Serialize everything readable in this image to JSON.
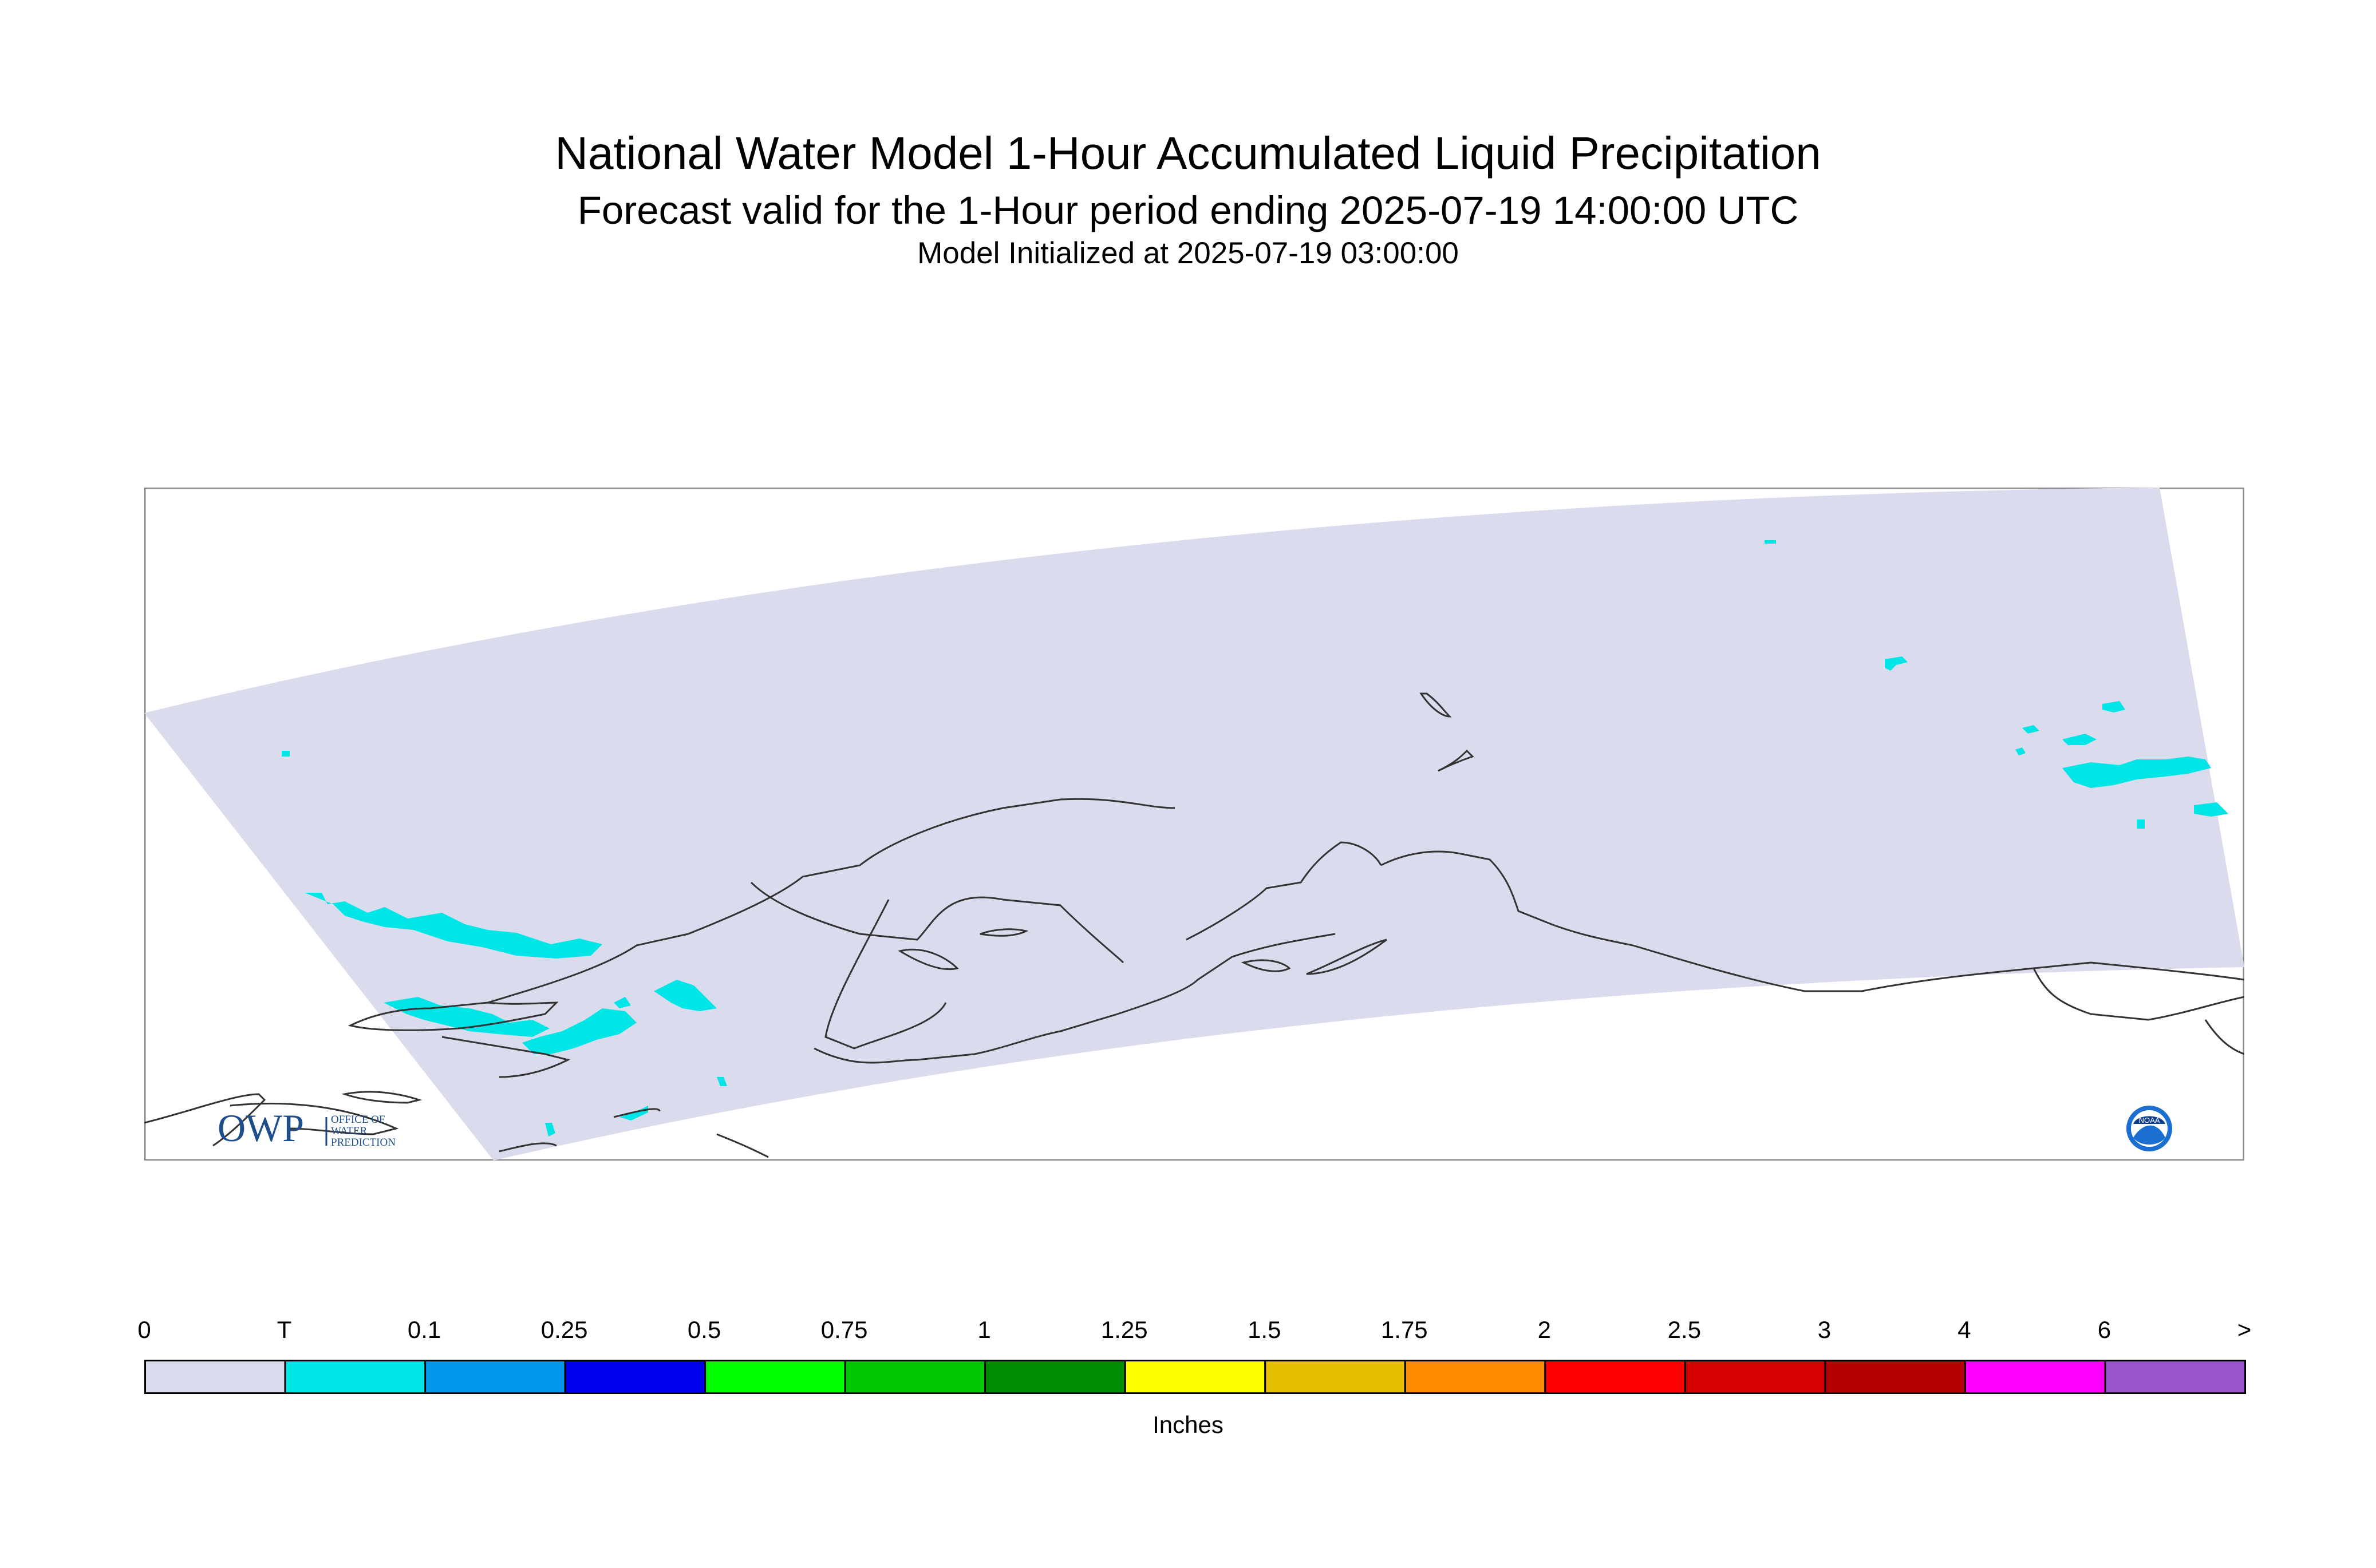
{
  "title": {
    "main": "National Water Model 1-Hour Accumulated Liquid Precipitation",
    "sub": "Forecast valid for the 1-Hour period ending 2025-07-19 14:00:00 UTC",
    "init": "Model Initialized at 2025-07-19 03:00:00"
  },
  "map": {
    "region_color": "#dadcee",
    "precip_color": "#00e5e5",
    "coast_color": "#333333",
    "logos": {
      "owp_text": "OWP",
      "owp_sub": [
        "OFFICE OF",
        "WATER",
        "PREDICTION"
      ],
      "noaa_text": "NOAA"
    }
  },
  "legend": {
    "units": "Inches",
    "labels": [
      "0",
      "T",
      "0.1",
      "0.25",
      "0.5",
      "0.75",
      "1",
      "1.25",
      "1.5",
      "1.75",
      "2",
      "2.5",
      "3",
      "4",
      "6",
      ">"
    ],
    "colors": [
      "#dadcee",
      "#00e5e5",
      "#0099ee",
      "#0000ee",
      "#00ff00",
      "#00c800",
      "#008c00",
      "#ffff00",
      "#e6bf00",
      "#ff8c00",
      "#ff0000",
      "#d70000",
      "#b40000",
      "#ff00ff",
      "#9955cc"
    ]
  }
}
